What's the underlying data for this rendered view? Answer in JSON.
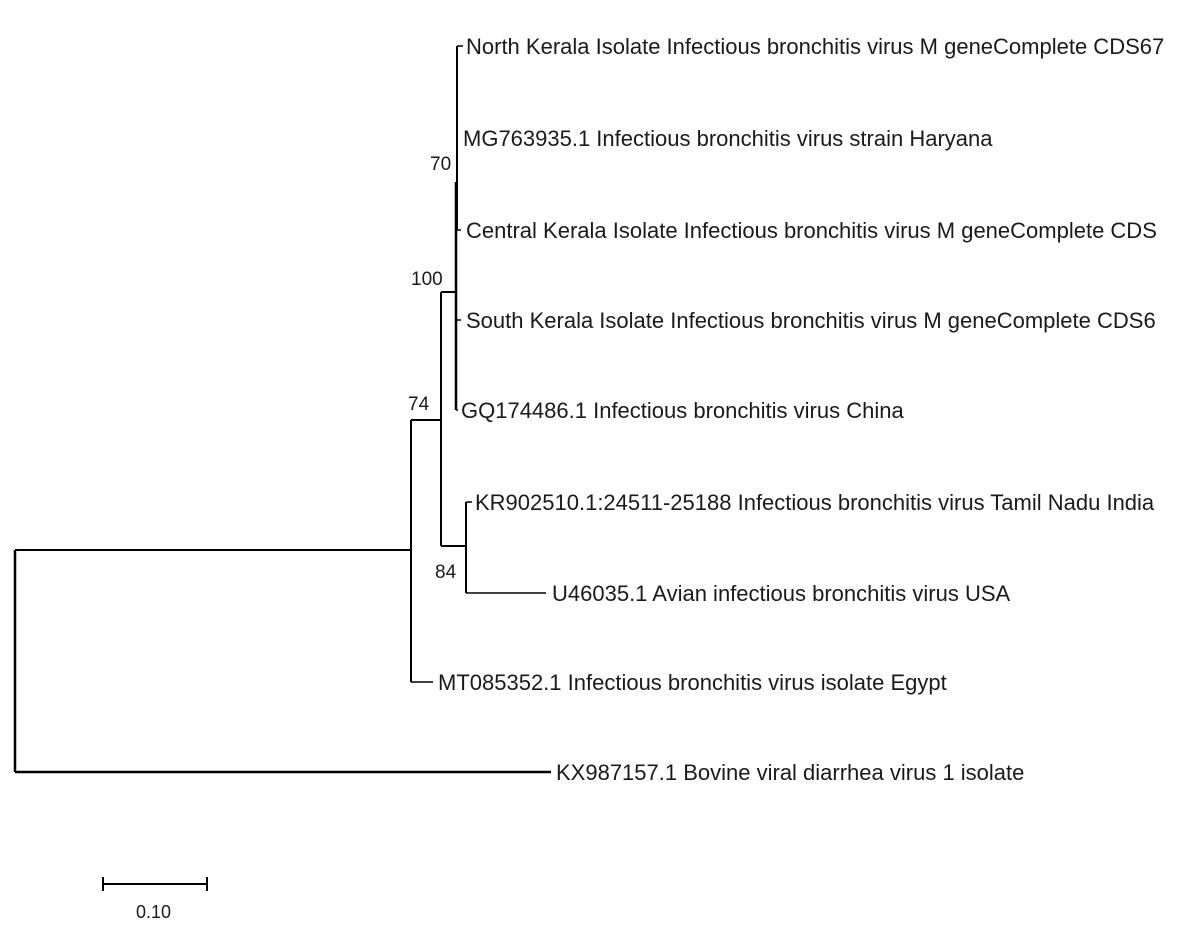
{
  "tree": {
    "colors": {
      "branch": "#000000",
      "text": "#1a1a1a",
      "background": "#ffffff"
    },
    "leaves": [
      {
        "id": "north_kerala",
        "label": "North Kerala Isolate Infectious bronchitis virus M geneComplete CDS67"
      },
      {
        "id": "haryana",
        "label": "MG763935.1 Infectious bronchitis virus strain Haryana"
      },
      {
        "id": "central_kerala",
        "label": "Central Kerala Isolate Infectious bronchitis virus M geneComplete CDS"
      },
      {
        "id": "south_kerala",
        "label": "South Kerala Isolate Infectious bronchitis virus M geneComplete CDS6"
      },
      {
        "id": "china",
        "label": "GQ174486.1 Infectious bronchitis virus China"
      },
      {
        "id": "tamil_nadu",
        "label": "KR902510.1:24511-25188 Infectious bronchitis virus Tamil Nadu India"
      },
      {
        "id": "usa",
        "label": "U46035.1 Avian infectious bronchitis virus USA"
      },
      {
        "id": "egypt",
        "label": "MT085352.1 Infectious bronchitis virus isolate Egypt"
      },
      {
        "id": "bovine",
        "label": "KX987157.1 Bovine viral diarrhea virus 1 isolate"
      }
    ],
    "bootstrap": [
      {
        "id": "boot_70",
        "value": "70"
      },
      {
        "id": "boot_100",
        "value": "100"
      },
      {
        "id": "boot_74",
        "value": "74"
      },
      {
        "id": "boot_84",
        "value": "84"
      }
    ],
    "scale_bar": {
      "label": "0.10",
      "length": 0.1
    }
  }
}
